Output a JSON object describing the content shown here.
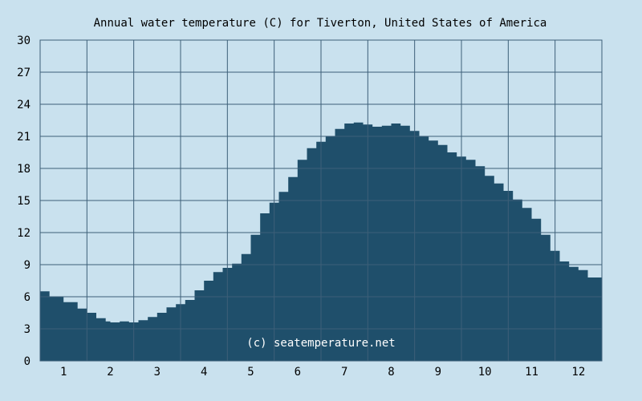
{
  "chart_data": {
    "type": "area",
    "title": "Annual water temperature (C) for Tiverton, United States of America",
    "xlabel": "",
    "ylabel": "",
    "xlim": [
      0.5,
      12.5
    ],
    "ylim": [
      0,
      30
    ],
    "y_ticks": [
      "0",
      "3",
      "6",
      "9",
      "12",
      "15",
      "18",
      "21",
      "24",
      "27",
      "30"
    ],
    "x_ticks": [
      "1",
      "2",
      "3",
      "4",
      "5",
      "6",
      "7",
      "8",
      "9",
      "10",
      "11",
      "12"
    ],
    "grid": true,
    "watermark": "(c) seatemperature.net",
    "colors": {
      "background": "#c9e1ee",
      "fill": "#1f4f6b",
      "grid": "#3d5f78"
    },
    "x": [
      0.5,
      0.7,
      1.0,
      1.3,
      1.5,
      1.7,
      1.9,
      2.0,
      2.2,
      2.4,
      2.6,
      2.8,
      3.0,
      3.2,
      3.4,
      3.6,
      3.8,
      4.0,
      4.2,
      4.4,
      4.6,
      4.8,
      5.0,
      5.2,
      5.4,
      5.6,
      5.8,
      6.0,
      6.2,
      6.4,
      6.6,
      6.8,
      7.0,
      7.2,
      7.4,
      7.6,
      7.8,
      8.0,
      8.2,
      8.4,
      8.6,
      8.8,
      9.0,
      9.2,
      9.4,
      9.6,
      9.8,
      10.0,
      10.2,
      10.4,
      10.6,
      10.8,
      11.0,
      11.2,
      11.4,
      11.6,
      11.8,
      12.0,
      12.2,
      12.5
    ],
    "y": [
      6.5,
      6.0,
      5.5,
      4.9,
      4.5,
      4.0,
      3.7,
      3.6,
      3.7,
      3.6,
      3.8,
      4.1,
      4.5,
      5.0,
      5.3,
      5.7,
      6.6,
      7.5,
      8.3,
      8.7,
      9.1,
      10.0,
      11.8,
      13.8,
      14.8,
      15.8,
      17.2,
      18.8,
      19.9,
      20.5,
      21.0,
      21.7,
      22.2,
      22.3,
      22.1,
      21.9,
      22.0,
      22.2,
      22.0,
      21.5,
      21.0,
      20.6,
      20.2,
      19.5,
      19.1,
      18.8,
      18.2,
      17.3,
      16.6,
      15.9,
      15.1,
      14.3,
      13.3,
      11.8,
      10.3,
      9.3,
      8.8,
      8.5,
      7.8,
      7.4
    ]
  }
}
